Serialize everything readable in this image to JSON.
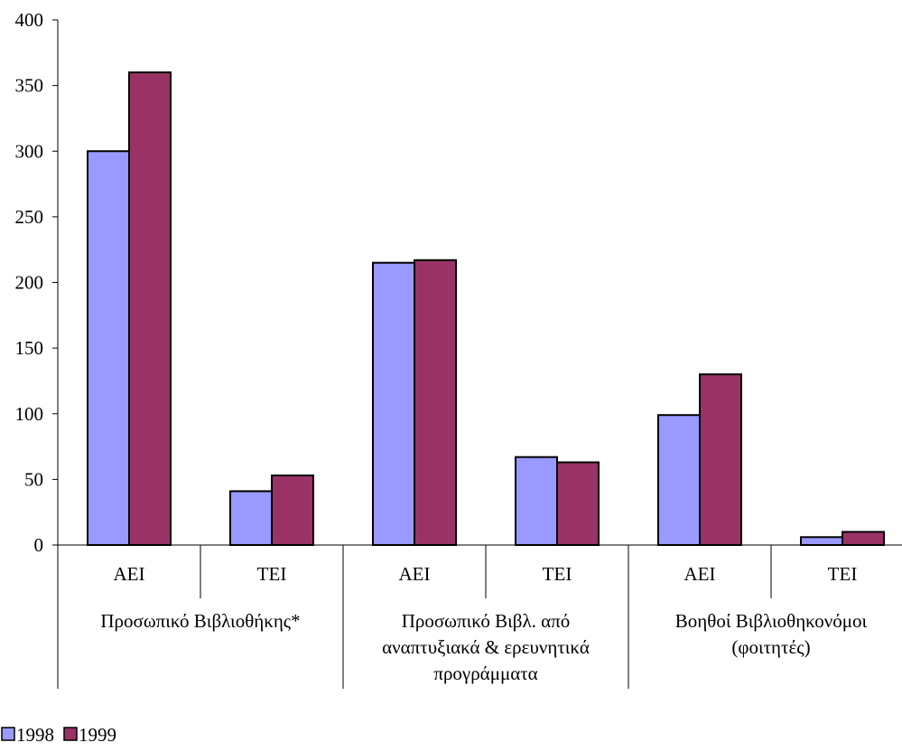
{
  "chart_data": {
    "type": "bar",
    "categories": [
      "ΑΕΙ",
      "ΤΕΙ",
      "ΑΕΙ",
      "ΤΕΙ",
      "ΑΕΙ",
      "ΤΕΙ"
    ],
    "groups": [
      {
        "label_lines": [
          "Προσωπικό Βιβλιοθήκης*"
        ],
        "categories": [
          0,
          1
        ]
      },
      {
        "label_lines": [
          "Προσωπικό Βιβλ. από",
          "αναπτυξιακά & ερευνητικά",
          "προγράμματα"
        ],
        "categories": [
          2,
          3
        ]
      },
      {
        "label_lines": [
          "Βοηθοί Βιβλιοθηκονόμοι",
          "(φοιτητές)"
        ],
        "categories": [
          4,
          5
        ]
      }
    ],
    "series": [
      {
        "name": "1998",
        "color": "#9999ff",
        "values": [
          300,
          41,
          215,
          67,
          99,
          6
        ]
      },
      {
        "name": "1999",
        "color": "#993366",
        "values": [
          360,
          53,
          217,
          63,
          130,
          10
        ]
      }
    ],
    "ylim": [
      0,
      400
    ],
    "yticks": [
      "0",
      "50",
      "100",
      "150",
      "200",
      "250",
      "300",
      "350",
      "400"
    ],
    "grid": false,
    "legend_position": "bottom-left",
    "title": "",
    "xlabel": "",
    "ylabel": ""
  }
}
